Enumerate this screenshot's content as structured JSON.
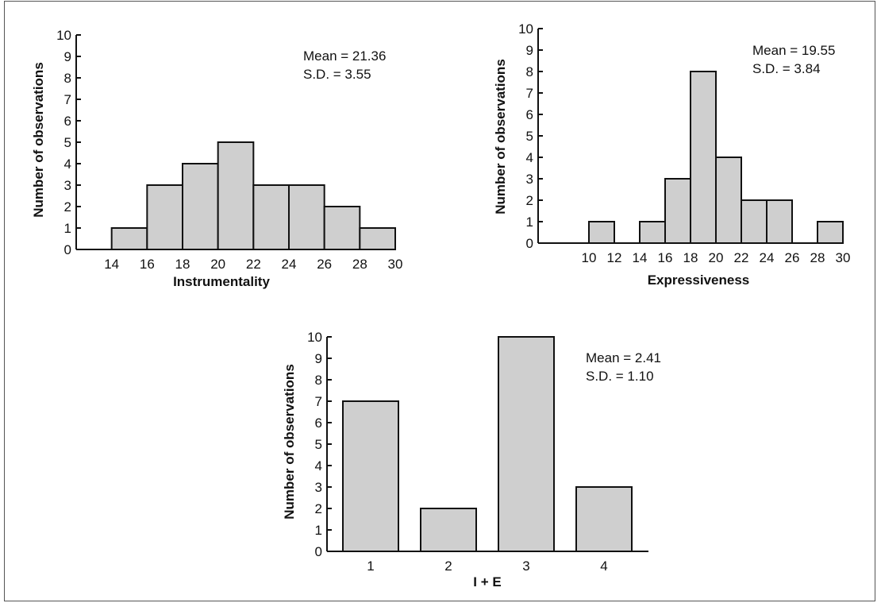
{
  "colors": {
    "bar_fill": "#cfcfcf",
    "axis": "#111111",
    "background": "#ffffff"
  },
  "chart_data": [
    {
      "type": "bar",
      "histogram": true,
      "xlabel": "Instrumentality",
      "ylabel": "Number of observations",
      "x_ticks": [
        14,
        16,
        18,
        20,
        22,
        24,
        26,
        28,
        30
      ],
      "xlim": [
        12,
        30
      ],
      "ylim": [
        0,
        10
      ],
      "y_ticks": [
        0,
        1,
        2,
        3,
        4,
        5,
        6,
        7,
        8,
        9,
        10
      ],
      "bins": [
        {
          "from": 14,
          "to": 16,
          "value": 1
        },
        {
          "from": 16,
          "to": 18,
          "value": 3
        },
        {
          "from": 18,
          "to": 20,
          "value": 4
        },
        {
          "from": 20,
          "to": 22,
          "value": 5
        },
        {
          "from": 22,
          "to": 24,
          "value": 3
        },
        {
          "from": 24,
          "to": 26,
          "value": 3
        },
        {
          "from": 26,
          "to": 28,
          "value": 2
        },
        {
          "from": 28,
          "to": 30,
          "value": 1
        }
      ],
      "annotations": [
        "Mean = 21.36",
        "S.D. = 3.55"
      ],
      "grid": false
    },
    {
      "type": "bar",
      "histogram": true,
      "xlabel": "Expressiveness",
      "ylabel": "Number of observations",
      "x_ticks": [
        10,
        12,
        14,
        16,
        18,
        20,
        22,
        24,
        26,
        28,
        30
      ],
      "xlim": [
        6,
        30
      ],
      "ylim": [
        0,
        10
      ],
      "y_ticks": [
        0,
        1,
        2,
        3,
        4,
        5,
        6,
        7,
        8,
        9,
        10
      ],
      "bins": [
        {
          "from": 10,
          "to": 12,
          "value": 1
        },
        {
          "from": 14,
          "to": 16,
          "value": 1
        },
        {
          "from": 16,
          "to": 18,
          "value": 3
        },
        {
          "from": 18,
          "to": 20,
          "value": 8
        },
        {
          "from": 20,
          "to": 22,
          "value": 4
        },
        {
          "from": 22,
          "to": 24,
          "value": 2
        },
        {
          "from": 24,
          "to": 26,
          "value": 2
        },
        {
          "from": 28,
          "to": 30,
          "value": 1
        }
      ],
      "annotations": [
        "Mean = 19.55",
        "S.D. = 3.84"
      ],
      "grid": false
    },
    {
      "type": "bar",
      "xlabel": "I + E",
      "ylabel": "Number of observations",
      "categories": [
        "1",
        "2",
        "3",
        "4"
      ],
      "values": [
        7,
        2,
        10,
        3
      ],
      "ylim": [
        0,
        10
      ],
      "y_ticks": [
        0,
        1,
        2,
        3,
        4,
        5,
        6,
        7,
        8,
        9,
        10
      ],
      "annotations": [
        "Mean = 2.41",
        "S.D. = 1.10"
      ],
      "grid": false
    }
  ]
}
